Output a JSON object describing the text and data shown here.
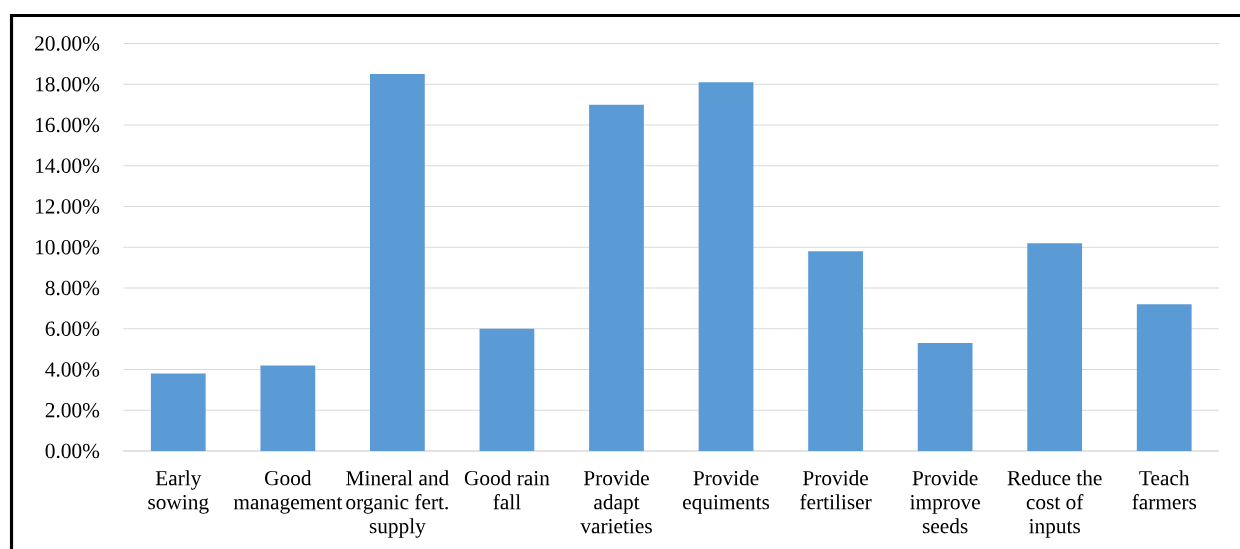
{
  "chart_data": {
    "type": "bar",
    "categories": [
      "Early sowing",
      "Good management",
      "Mineral and organic fert. supply",
      "Good rain fall",
      "Provide adapt varieties",
      "Provide equiments",
      "Provide fertiliser",
      "Provide improve seeds",
      "Reduce the cost of inputs",
      "Teach farmers"
    ],
    "values": [
      3.8,
      4.2,
      18.5,
      6.0,
      17.0,
      18.1,
      9.8,
      5.3,
      10.2,
      7.2
    ],
    "color": "#5b9bd5",
    "ylim": [
      0,
      20
    ],
    "yticks": [
      {
        "value": 0,
        "label": "0.00%"
      },
      {
        "value": 2,
        "label": "2.00%"
      },
      {
        "value": 4,
        "label": "4.00%"
      },
      {
        "value": 6,
        "label": "6.00%"
      },
      {
        "value": 8,
        "label": "8.00%"
      },
      {
        "value": 10,
        "label": "10.00%"
      },
      {
        "value": 12,
        "label": "12.00%"
      },
      {
        "value": 14,
        "label": "14.00%"
      },
      {
        "value": 16,
        "label": "16.00%"
      },
      {
        "value": 18,
        "label": "18.00%"
      },
      {
        "value": 20,
        "label": "20.00%"
      }
    ],
    "grid": "y"
  }
}
